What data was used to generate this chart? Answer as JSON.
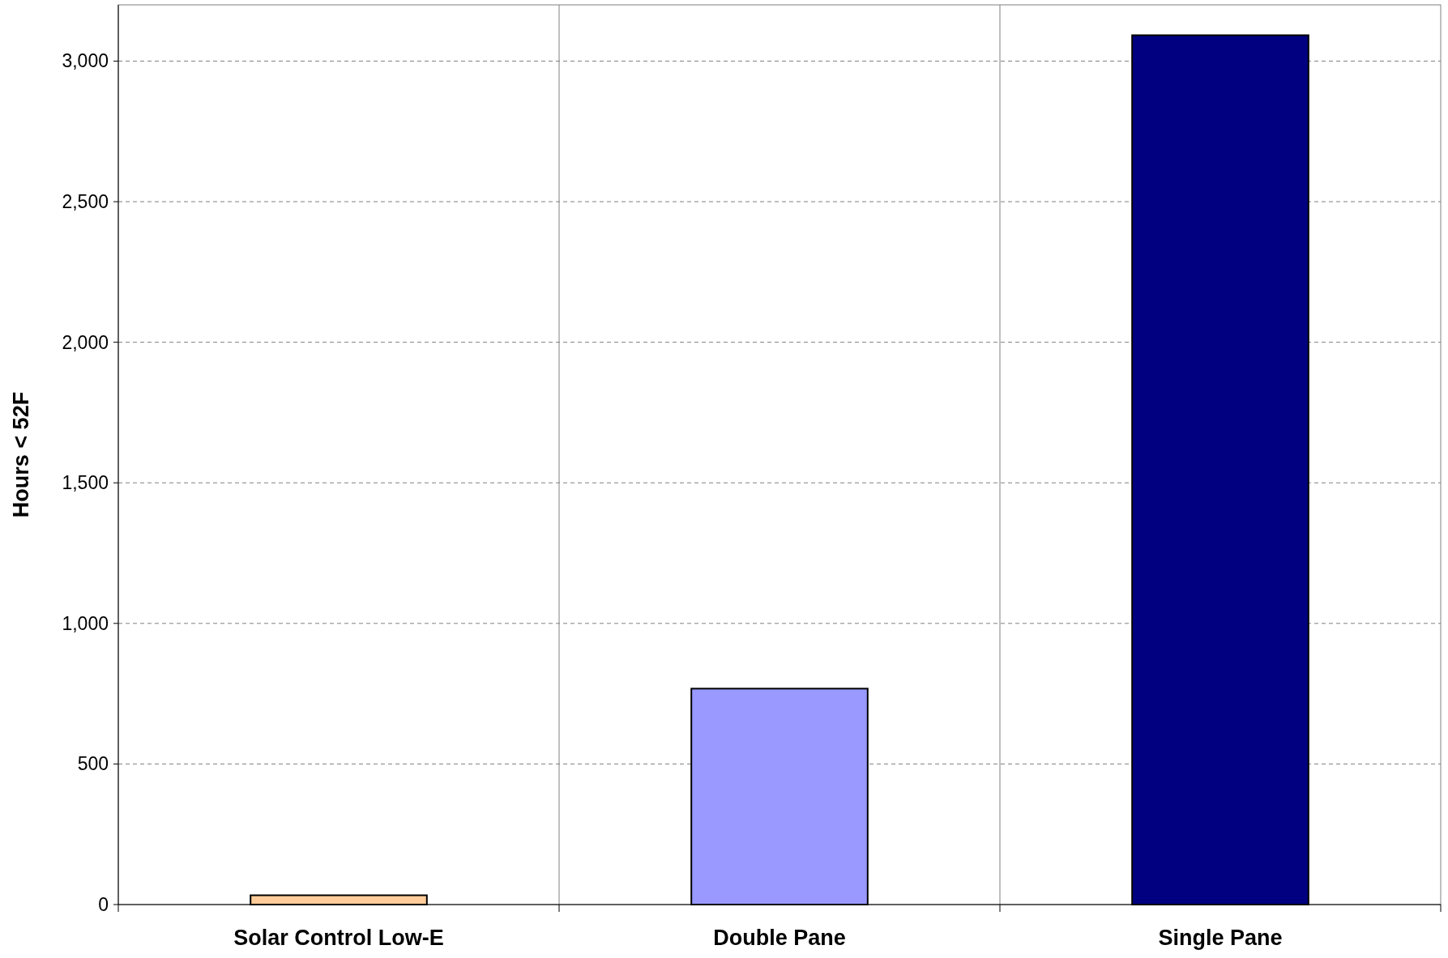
{
  "chart_data": {
    "type": "bar",
    "ylabel": "Hours < 52F",
    "categories": [
      "Solar Control Low-E",
      "Double Pane",
      "Single Pane"
    ],
    "values": [
      33,
      768,
      3092
    ],
    "colors": [
      "#ffcc99",
      "#9999ff",
      "#000080"
    ],
    "ylim": [
      0,
      3200
    ],
    "yticks": [
      {
        "value": 0,
        "label": "0"
      },
      {
        "value": 500,
        "label": "500"
      },
      {
        "value": 1000,
        "label": "1,000"
      },
      {
        "value": 1500,
        "label": "1,500"
      },
      {
        "value": 2000,
        "label": "2,000"
      },
      {
        "value": 2500,
        "label": "2,500"
      },
      {
        "value": 3000,
        "label": "3,000"
      }
    ],
    "grid": true
  }
}
